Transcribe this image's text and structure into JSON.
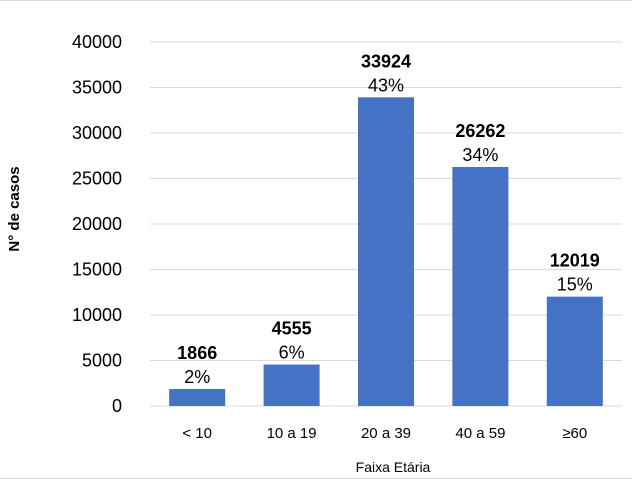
{
  "chart_data": {
    "type": "bar",
    "categories": [
      "< 10",
      "10 a 19",
      "20 a 39",
      "40 a 59",
      "≥60"
    ],
    "values": [
      1866,
      4555,
      33924,
      26262,
      12019
    ],
    "percent_labels": [
      "2%",
      "6%",
      "43%",
      "34%",
      "15%"
    ],
    "title": "",
    "xlabel": "Faixa Etária",
    "ylabel": "N° de casos",
    "ylim": [
      0,
      40000
    ],
    "yticks": [
      0,
      5000,
      10000,
      15000,
      20000,
      25000,
      30000,
      35000,
      40000
    ],
    "ytick_labels": [
      "0",
      "5000",
      "10000",
      "15000",
      "20000",
      "25000",
      "30000",
      "35000",
      "40000"
    ],
    "grid": true,
    "bar_color": "#4472c4",
    "grid_color": "#d9d9d9"
  }
}
